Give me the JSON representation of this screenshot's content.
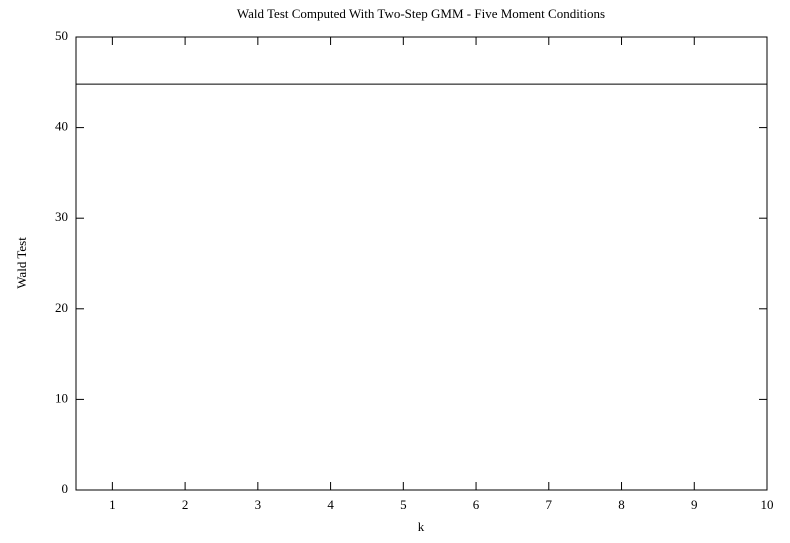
{
  "chart_data": {
    "type": "line",
    "title": "Wald Test Computed With Two-Step GMM - Five Moment Conditions",
    "x_label": "k",
    "y_label": "Wald Test",
    "x": [
      0.5,
      1,
      2,
      3,
      4,
      5,
      6,
      7,
      8,
      9,
      10
    ],
    "series": [
      {
        "color": "#000000",
        "values": [
          44.8,
          44.8,
          44.8,
          44.8,
          44.8,
          44.8,
          44.8,
          44.8,
          44.8,
          44.8,
          44.8
        ]
      }
    ],
    "xlim": [
      0.5,
      10
    ],
    "xticks": [
      1,
      2,
      3,
      4,
      5,
      6,
      7,
      8,
      9,
      10
    ],
    "ylim": [
      0,
      50
    ],
    "yticks": [
      0,
      10,
      20,
      30,
      40,
      50
    ],
    "grid": false
  }
}
